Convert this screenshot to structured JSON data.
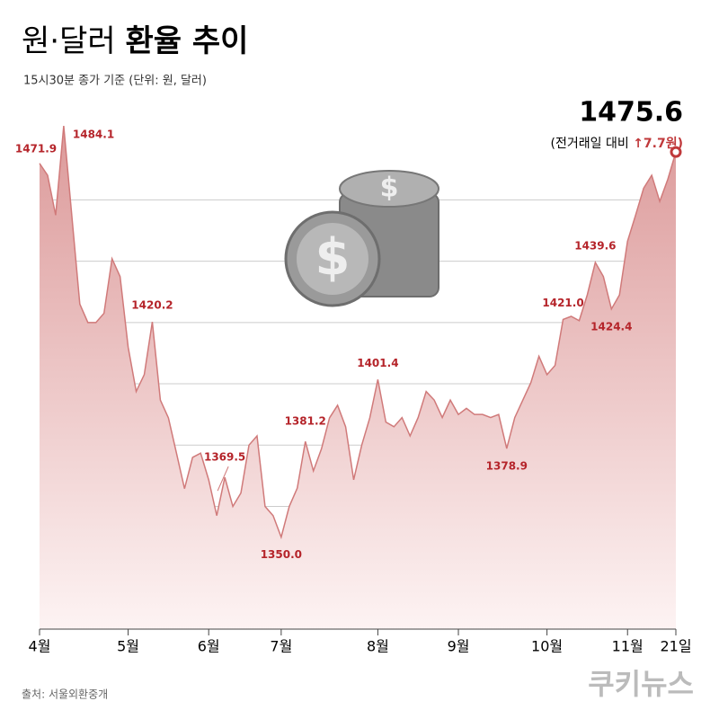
{
  "chart_data": {
    "type": "area",
    "title_light": "원·달러",
    "title_bold": "환율 추이",
    "subtitle": "15시30분 종가 기준 (단위: 원, 달러)",
    "source": "출처: 서울외환중개",
    "brand": "쿠키뉴스",
    "change_prefix": "(전거래일 대비",
    "change_label": "↑7.7원)",
    "color": "#d07a7a",
    "categories": [
      "4월",
      null,
      null,
      null,
      null,
      null,
      null,
      null,
      null,
      null,
      null,
      "5월",
      null,
      null,
      null,
      null,
      null,
      null,
      null,
      null,
      null,
      "6월",
      null,
      null,
      null,
      null,
      null,
      null,
      null,
      null,
      "7월",
      null,
      null,
      null,
      null,
      null,
      null,
      null,
      null,
      null,
      null,
      null,
      "8월",
      null,
      null,
      null,
      null,
      null,
      null,
      null,
      null,
      null,
      "9월",
      null,
      null,
      null,
      null,
      null,
      null,
      null,
      null,
      null,
      null,
      "10월",
      null,
      null,
      null,
      null,
      null,
      null,
      null,
      null,
      null,
      "11월",
      null,
      null,
      null,
      null,
      null,
      "21일"
    ],
    "values": [
      1471.9,
      1468,
      1455,
      1484.1,
      1455,
      1426,
      1420,
      1420,
      1423,
      1440.8,
      1435,
      1412,
      1397.5,
      1403,
      1420.2,
      1394.7,
      1388.9,
      1377.4,
      1365.8,
      1376,
      1377.4,
      1368.7,
      1357,
      1369.5,
      1360,
      1364.4,
      1380,
      1383,
      1360,
      1357,
      1350.0,
      1360,
      1366,
      1381.2,
      1371.6,
      1378.8,
      1388.9,
      1393,
      1386,
      1368.7,
      1380,
      1388.9,
      1401.4,
      1387.5,
      1386,
      1389,
      1383,
      1389,
      1397.5,
      1394.7,
      1389,
      1394.7,
      1390,
      1392,
      1390,
      1390,
      1389,
      1390,
      1378.9,
      1389,
      1394.7,
      1400.4,
      1409,
      1403,
      1406,
      1421.0,
      1422,
      1420.6,
      1429,
      1439.6,
      1435,
      1424.4,
      1429,
      1446.5,
      1455,
      1463.8,
      1468,
      1459.5,
      1466.7,
      1475.6
    ],
    "value_labels": [
      "1471.9",
      null,
      null,
      "1484.1",
      null,
      null,
      null,
      null,
      null,
      null,
      null,
      null,
      null,
      null,
      "1420.2",
      null,
      null,
      null,
      null,
      null,
      null,
      null,
      null,
      "1369.5",
      null,
      null,
      null,
      null,
      null,
      null,
      "1350.0",
      null,
      null,
      "1381.2",
      null,
      null,
      null,
      null,
      null,
      null,
      null,
      null,
      "1401.4",
      null,
      null,
      null,
      null,
      null,
      null,
      null,
      null,
      null,
      null,
      null,
      null,
      null,
      null,
      null,
      "1378.9",
      null,
      null,
      null,
      null,
      null,
      null,
      "1421.0",
      null,
      null,
      null,
      "1439.6",
      null,
      "1424.4",
      null,
      null,
      null,
      null,
      null,
      null,
      null,
      "1475.6"
    ],
    "ylim": [
      1320,
      1490
    ],
    "yticks": [
      1340,
      1360,
      1380,
      1400,
      1420,
      1440,
      1460
    ],
    "grid": true
  }
}
